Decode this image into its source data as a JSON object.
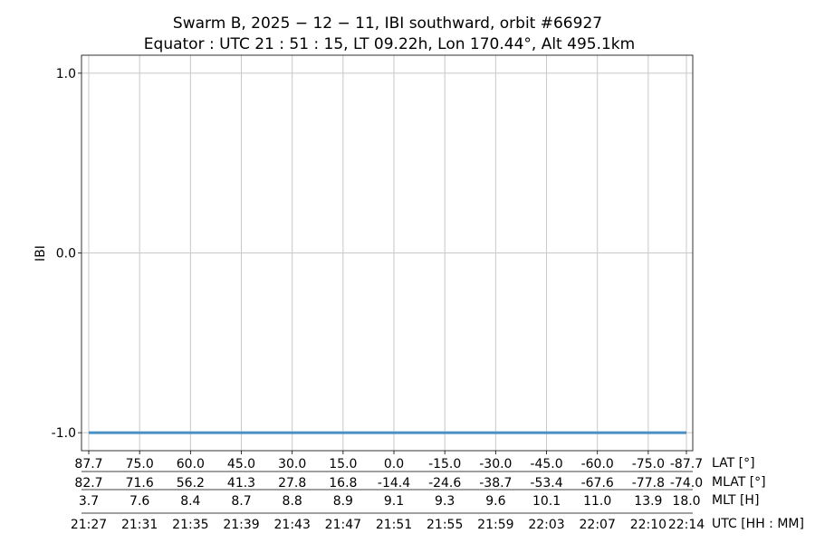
{
  "chart_data": {
    "type": "line",
    "title_line1": "Swarm B,  2025 − 12 − 11,  IBI southward,  orbit #66927",
    "title_line2": "Equator :  UTC 21 : 51 : 15,  LT 09.22h,  Lon 170.44°,  Alt 495.1km",
    "ylabel": "IBI",
    "ylim": [
      -1.1,
      1.1
    ],
    "yticks": [
      -1.0,
      0.0,
      1.0
    ],
    "ytick_labels": [
      "-1.0",
      "0.0",
      "1.0"
    ],
    "grid": true,
    "x_start": 0,
    "x_end": 47,
    "xticks": [
      0,
      4,
      8,
      12,
      16,
      20,
      24,
      28,
      32,
      36,
      40,
      44,
      47
    ],
    "series": [
      {
        "x": [
          0,
          47
        ],
        "y": [
          -1.0,
          -1.0
        ]
      }
    ],
    "tick_rows": [
      {
        "label": "LAT [°]",
        "values": [
          "87.7",
          "75.0",
          "60.0",
          "45.0",
          "30.0",
          "15.0",
          "0.0",
          "-15.0",
          "-30.0",
          "-45.0",
          "-60.0",
          "-75.0",
          "-87.7"
        ]
      },
      {
        "label": "MLAT [°]",
        "values": [
          "82.7",
          "71.6",
          "56.2",
          "41.3",
          "27.8",
          "16.8",
          "-14.4",
          "-24.6",
          "-38.7",
          "-53.4",
          "-67.6",
          "-77.8",
          "-74.0"
        ]
      },
      {
        "label": "MLT [H]",
        "values": [
          "3.7",
          "7.6",
          "8.4",
          "8.7",
          "8.8",
          "8.9",
          "9.1",
          "9.3",
          "9.6",
          "10.1",
          "11.0",
          "13.9",
          "18.0"
        ]
      },
      {
        "label": "UTC [HH : MM]",
        "values": [
          "21:27",
          "21:31",
          "21:35",
          "21:39",
          "21:43",
          "21:47",
          "21:51",
          "21:55",
          "21:59",
          "22:03",
          "22:07",
          "22:10",
          "22:14"
        ]
      }
    ],
    "colors": {
      "line": "#4a90c4",
      "grid": "#c8c8c8",
      "axis": "#000000"
    }
  }
}
